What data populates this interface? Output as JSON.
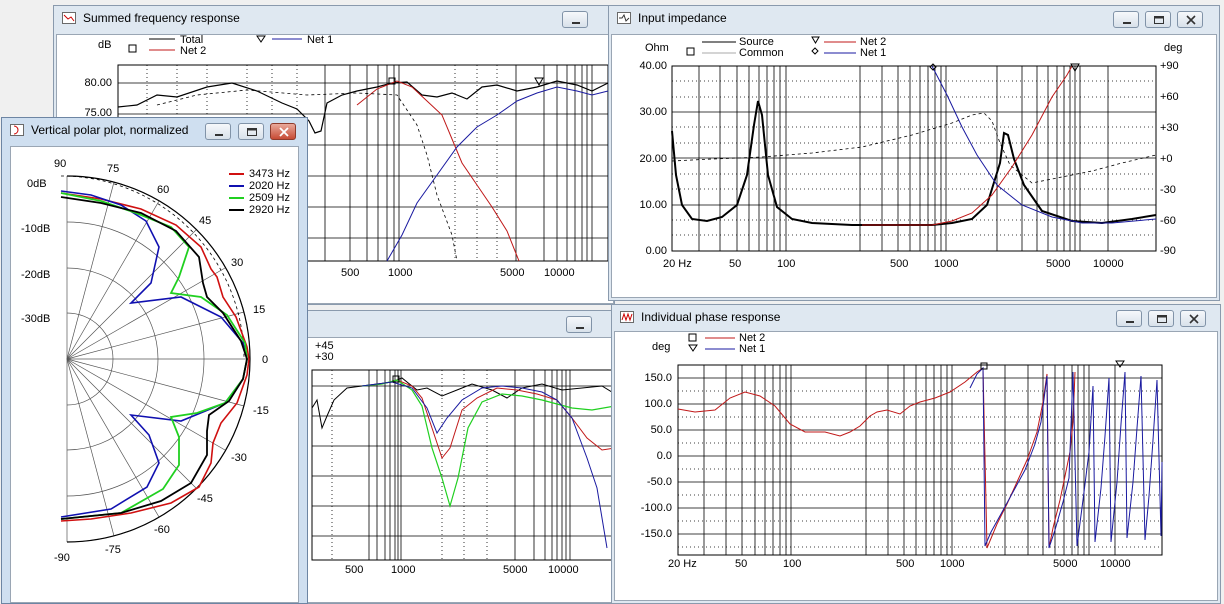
{
  "windows": {
    "summed": {
      "title": "Summed frequency response",
      "y_unit": "dB",
      "legend": {
        "total": "Total",
        "net2": "Net 2",
        "net1": "Net 1"
      },
      "y_ticks": [
        "80.00",
        "75.00"
      ],
      "x_ticks": [
        "500",
        "1000",
        "5000",
        "10000"
      ]
    },
    "impedance": {
      "title": "Input impedance",
      "y_unit": "Ohm",
      "y2_unit": "deg",
      "legend": {
        "source": "Source",
        "common": "Common",
        "net2": "Net 2",
        "net1": "Net 1"
      },
      "y_ticks": [
        "40.00",
        "30.00",
        "20.00",
        "10.00",
        "0.00"
      ],
      "y2_ticks": [
        "+90",
        "+60",
        "+30",
        "+0",
        "-30",
        "-60",
        "-90"
      ],
      "x_ticks": [
        "20 Hz",
        "50",
        "100",
        "500",
        "1000",
        "5000",
        "10000"
      ]
    },
    "polar": {
      "title": "Vertical polar plot, normalized",
      "db_labels": [
        "0dB",
        "-10dB",
        "-20dB",
        "-30dB"
      ],
      "angle_labels": [
        "90",
        "75",
        "60",
        "45",
        "30",
        "15",
        "0",
        "-15",
        "-30",
        "-45",
        "-60",
        "-75",
        "-90"
      ],
      "legend": [
        {
          "label": "3473 Hz",
          "color": "#d01010"
        },
        {
          "label": "2020 Hz",
          "color": "#1010b0"
        },
        {
          "label": "2509 Hz",
          "color": "#20d020"
        },
        {
          "label": "2920 Hz",
          "color": "#000000"
        }
      ]
    },
    "middle": {
      "y_ticks": [
        "+45",
        "+30"
      ],
      "x_ticks": [
        "500",
        "1000",
        "5000",
        "10000"
      ]
    },
    "phase": {
      "title": "Individual phase response",
      "y_unit": "deg",
      "legend": {
        "net2": "Net 2",
        "net1": "Net 1"
      },
      "y_ticks": [
        "150.0",
        "100.0",
        "50.0",
        "0.0",
        "-50.0",
        "-100.0",
        "-150.0"
      ],
      "x_ticks": [
        "20 Hz",
        "50",
        "100",
        "500",
        "1000",
        "5000",
        "10000"
      ]
    }
  },
  "colors": {
    "net1": "#1a1aa0",
    "net2": "#c01818",
    "grid": "#000000"
  }
}
